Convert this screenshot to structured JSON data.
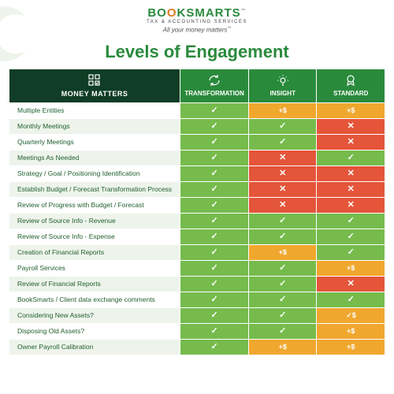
{
  "brand": {
    "name_part1": "BO",
    "name_part2": "O",
    "name_part3": "KSMARTS",
    "sub": "TAX & ACCOUNTING SERVICES",
    "tagline": "All your money matters",
    "colors": {
      "green": "#2a8a3c",
      "orange": "#e07b1f",
      "dark": "#0f3d25"
    }
  },
  "title": {
    "text": "Levels of Engagement",
    "color": "#2a8a3c"
  },
  "columns": {
    "feature": "MONEY MATTERS",
    "c1": "TRANSFORMATION",
    "c2": "INSIGHT",
    "c3": "STANDARD"
  },
  "palette": {
    "check_bg": "#76bb4c",
    "cross_bg": "#e4553a",
    "plus_bg": "#f0a72e",
    "header_feature_bg": "#0f3d25",
    "header_col_bg": "#2a8a3c",
    "row_alt_bg": "#eef4ec",
    "feature_text": "#1f5f2d"
  },
  "icons": {
    "check": "✓",
    "cross": "✕",
    "plus": "+$",
    "plus_check": "✓$"
  },
  "rows": [
    {
      "label": "Multiple Entities",
      "cells": [
        "check",
        "plus",
        "plus"
      ]
    },
    {
      "label": "Monthly Meetings",
      "cells": [
        "check",
        "check",
        "cross"
      ]
    },
    {
      "label": "Quarterly Meetings",
      "cells": [
        "check",
        "check",
        "cross"
      ]
    },
    {
      "label": "Meetings As Needed",
      "cells": [
        "check",
        "cross",
        "check"
      ]
    },
    {
      "label": "Strategy / Goal / Positioning Identification",
      "cells": [
        "check",
        "cross",
        "cross"
      ]
    },
    {
      "label": "Establish Budget / Forecast Transformation Process",
      "cells": [
        "check",
        "cross",
        "cross"
      ]
    },
    {
      "label": "Review of Progress with Budget / Forecast",
      "cells": [
        "check",
        "cross",
        "cross"
      ]
    },
    {
      "label": "Review of Source Info - Revenue",
      "cells": [
        "check",
        "check",
        "check"
      ]
    },
    {
      "label": "Review of Source Info - Expense",
      "cells": [
        "check",
        "check",
        "check"
      ]
    },
    {
      "label": "Creation of Financial Reports",
      "cells": [
        "check",
        "plus",
        "check"
      ]
    },
    {
      "label": "Payroll Services",
      "cells": [
        "check",
        "check",
        "plus"
      ]
    },
    {
      "label": "Review of Financial Reports",
      "cells": [
        "check",
        "check",
        "cross"
      ]
    },
    {
      "label": "BookSmarts / Client data exchange comments",
      "cells": [
        "check",
        "check",
        "check"
      ]
    },
    {
      "label": "Considering New Assets?",
      "cells": [
        "check",
        "check",
        "plus_check"
      ]
    },
    {
      "label": "Disposing Old Assets?",
      "cells": [
        "check",
        "check",
        "plus"
      ]
    },
    {
      "label": "Owner Payroll Calibration",
      "cells": [
        "check",
        "plus",
        "plus"
      ]
    }
  ]
}
